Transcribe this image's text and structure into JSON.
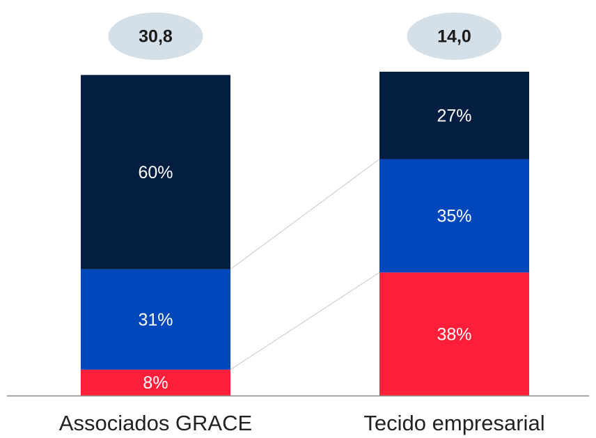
{
  "chart_data": {
    "type": "stacked_bar_100",
    "categories": [
      "Associados GRACE",
      "Tecido empresarial"
    ],
    "totals": [
      30.8,
      14.0
    ],
    "total_labels": [
      "30,8",
      "14,0"
    ],
    "series": [
      {
        "color": "#ff1f3a",
        "values": [
          8,
          38
        ],
        "value_labels": [
          "8%",
          "38%"
        ]
      },
      {
        "color": "#0047bb",
        "values": [
          31,
          35
        ],
        "value_labels": [
          "31%",
          "35%"
        ]
      },
      {
        "color": "#041e42",
        "values": [
          60,
          27
        ],
        "value_labels": [
          "60%",
          "27%"
        ]
      }
    ],
    "ylim": [
      0,
      100
    ]
  }
}
